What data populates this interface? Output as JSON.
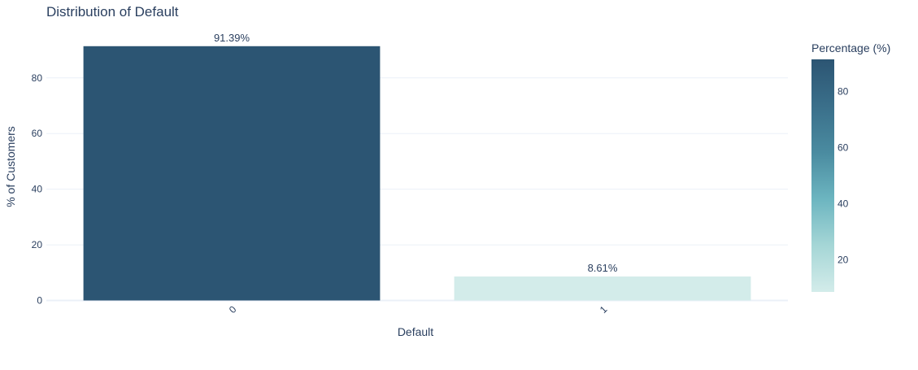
{
  "chart_data": {
    "type": "bar",
    "title": "Distribution of Default",
    "xlabel": "Default",
    "ylabel": "% of Customers",
    "categories": [
      "0",
      "1"
    ],
    "values": [
      91.39,
      8.61
    ],
    "data_labels": [
      "91.39%",
      "8.61%"
    ],
    "ylim": [
      0,
      92.5
    ],
    "yticks": [
      0,
      20,
      40,
      60,
      80
    ],
    "ytick_labels": [
      "0",
      "20",
      "40",
      "60",
      "80"
    ],
    "grid": true,
    "x_tick_rotation": "-45deg",
    "colorbar": {
      "title": "Percentage (%)",
      "range": [
        8.61,
        91.39
      ],
      "ticks": [
        20,
        40,
        60,
        80
      ],
      "tick_labels": [
        "20",
        "40",
        "60",
        "80"
      ],
      "colorscale": [
        "#d3ecea",
        "#a5d6d6",
        "#6cb5c0",
        "#4a8ba0",
        "#3a6f8a",
        "#2c5573"
      ]
    }
  }
}
